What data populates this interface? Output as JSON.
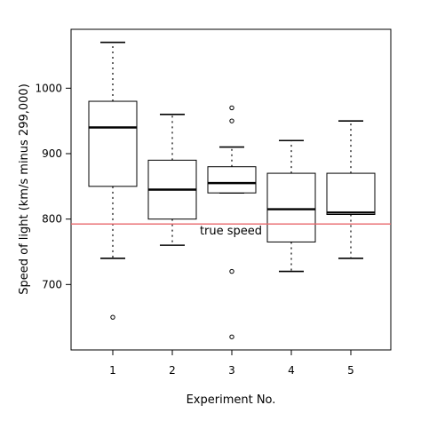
{
  "chart_data": {
    "type": "box",
    "xlabel": "Experiment No.",
    "ylabel": "Speed of light (km/s minus 299,000)",
    "categories": [
      "1",
      "2",
      "3",
      "4",
      "5"
    ],
    "ylim": [
      600,
      1090
    ],
    "yticks": [
      700,
      800,
      900,
      1000
    ],
    "grid": false,
    "boxes": [
      {
        "label": "1",
        "whisker_low": 740,
        "q1": 850,
        "median": 940,
        "q3": 980,
        "whisker_high": 1070,
        "outliers": [
          650
        ]
      },
      {
        "label": "2",
        "whisker_low": 760,
        "q1": 800,
        "median": 845,
        "q3": 890,
        "whisker_high": 960,
        "outliers": []
      },
      {
        "label": "3",
        "whisker_low": 840,
        "q1": 840,
        "median": 855,
        "q3": 880,
        "whisker_high": 910,
        "outliers": [
          620,
          720,
          950,
          970
        ]
      },
      {
        "label": "4",
        "whisker_low": 720,
        "q1": 765,
        "median": 815,
        "q3": 870,
        "whisker_high": 920,
        "outliers": []
      },
      {
        "label": "5",
        "whisker_low": 740,
        "q1": 807,
        "median": 810,
        "q3": 870,
        "whisker_high": 950,
        "outliers": []
      }
    ],
    "reference_line": {
      "value": 792.458,
      "label": "true speed",
      "color": "#e8676b"
    },
    "box_color": "#000000"
  }
}
